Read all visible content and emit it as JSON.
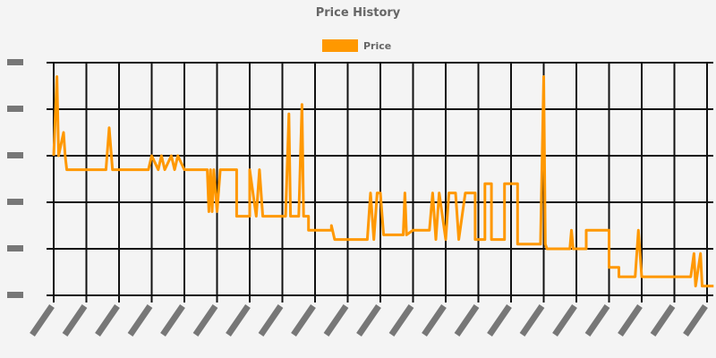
{
  "chart_data": {
    "type": "line",
    "title": "Price History",
    "legend": {
      "position": "top",
      "entries": [
        "Price"
      ]
    },
    "series": [
      {
        "name": "Price",
        "color": "#ff9800",
        "points": [
          [
            0,
            3.0
          ],
          [
            0.1,
            4.7
          ],
          [
            0.15,
            3.0
          ],
          [
            0.3,
            3.5
          ],
          [
            0.35,
            3.0
          ],
          [
            0.4,
            2.7
          ],
          [
            1.6,
            2.7
          ],
          [
            1.7,
            3.6
          ],
          [
            1.8,
            2.7
          ],
          [
            2.9,
            2.7
          ],
          [
            3.0,
            3.0
          ],
          [
            3.2,
            2.7
          ],
          [
            3.3,
            3.0
          ],
          [
            3.4,
            2.7
          ],
          [
            3.6,
            3.0
          ],
          [
            3.7,
            2.7
          ],
          [
            3.8,
            3.0
          ],
          [
            4.0,
            2.7
          ],
          [
            4.7,
            2.7
          ],
          [
            4.75,
            1.8
          ],
          [
            4.8,
            2.7
          ],
          [
            4.85,
            1.8
          ],
          [
            4.9,
            2.7
          ],
          [
            5.0,
            1.8
          ],
          [
            5.1,
            2.7
          ],
          [
            5.6,
            2.7
          ],
          [
            5.6,
            1.7
          ],
          [
            6.0,
            1.7
          ],
          [
            6.0,
            2.7
          ],
          [
            6.2,
            1.7
          ],
          [
            6.3,
            2.7
          ],
          [
            6.4,
            1.7
          ],
          [
            7.1,
            1.7
          ],
          [
            7.2,
            3.9
          ],
          [
            7.25,
            1.7
          ],
          [
            7.5,
            1.7
          ],
          [
            7.6,
            4.1
          ],
          [
            7.65,
            1.7
          ],
          [
            7.8,
            1.7
          ],
          [
            7.8,
            1.4
          ],
          [
            8.5,
            1.4
          ],
          [
            8.5,
            1.5
          ],
          [
            8.6,
            1.2
          ],
          [
            9.6,
            1.2
          ],
          [
            9.7,
            2.2
          ],
          [
            9.8,
            1.2
          ],
          [
            9.9,
            2.2
          ],
          [
            10.0,
            2.2
          ],
          [
            10.1,
            1.3
          ],
          [
            10.7,
            1.3
          ],
          [
            10.75,
            2.2
          ],
          [
            10.8,
            1.3
          ],
          [
            11.0,
            1.4
          ],
          [
            11.5,
            1.4
          ],
          [
            11.6,
            2.2
          ],
          [
            11.7,
            1.2
          ],
          [
            11.8,
            2.2
          ],
          [
            12.0,
            1.2
          ],
          [
            12.1,
            2.2
          ],
          [
            12.3,
            2.2
          ],
          [
            12.4,
            1.2
          ],
          [
            12.6,
            2.2
          ],
          [
            12.9,
            2.2
          ],
          [
            12.9,
            1.2
          ],
          [
            13.2,
            1.2
          ],
          [
            13.2,
            2.4
          ],
          [
            13.4,
            2.4
          ],
          [
            13.4,
            1.2
          ],
          [
            13.8,
            1.2
          ],
          [
            13.8,
            2.4
          ],
          [
            14.2,
            2.4
          ],
          [
            14.2,
            1.1
          ],
          [
            14.9,
            1.1
          ],
          [
            15.0,
            4.7
          ],
          [
            15.05,
            1.1
          ],
          [
            15.1,
            1.0
          ],
          [
            15.8,
            1.0
          ],
          [
            15.85,
            1.4
          ],
          [
            15.9,
            1.0
          ],
          [
            16.3,
            1.0
          ],
          [
            16.3,
            1.4
          ],
          [
            17.0,
            1.4
          ],
          [
            17.0,
            0.6
          ],
          [
            17.3,
            0.6
          ],
          [
            17.3,
            0.4
          ],
          [
            17.8,
            0.4
          ],
          [
            17.9,
            1.4
          ],
          [
            18.0,
            0.4
          ],
          [
            18.1,
            0.4
          ],
          [
            19.5,
            0.4
          ],
          [
            19.6,
            0.9
          ],
          [
            19.65,
            0.2
          ],
          [
            19.8,
            0.9
          ],
          [
            19.85,
            0.2
          ],
          [
            20.2,
            0.2
          ]
        ]
      }
    ],
    "xlim": [
      0,
      20.2
    ],
    "ylim": [
      0,
      5
    ],
    "x_gridlines": 21,
    "y_gridlines": 6,
    "grid": true,
    "tick_labels_legible": false
  }
}
